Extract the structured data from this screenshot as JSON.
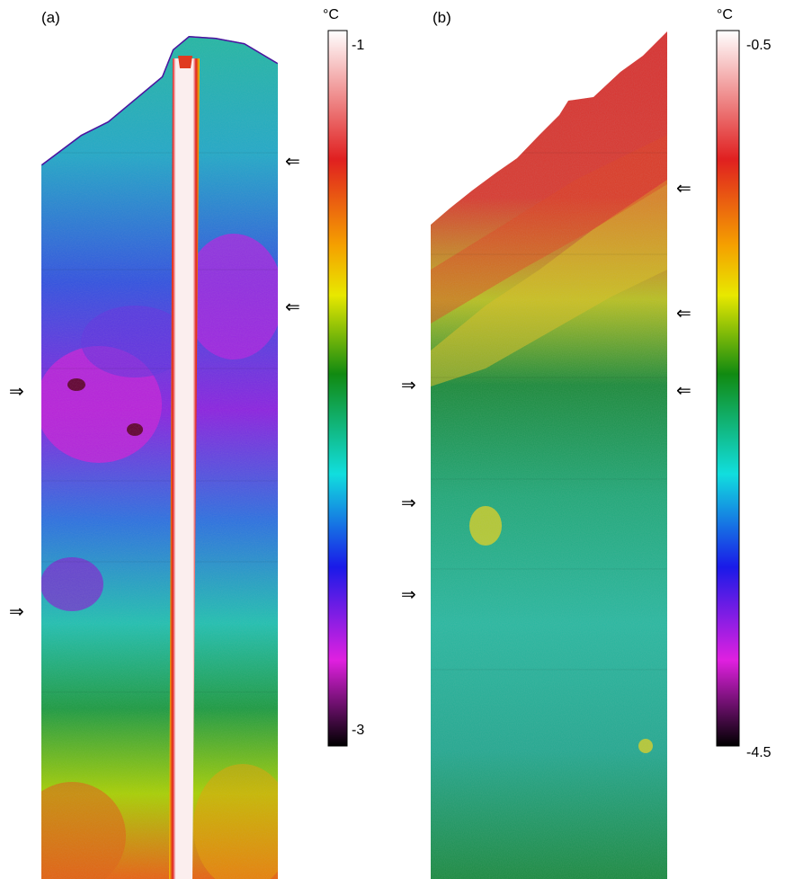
{
  "panels": {
    "a": {
      "label": "(a)",
      "unit": "°C",
      "scale_max": "-1",
      "scale_min": "-3",
      "arrows": [
        "⇐",
        "⇐",
        "⇒",
        "⇒"
      ]
    },
    "b": {
      "label": "(b)",
      "unit": "°C",
      "scale_max": "-0.5",
      "scale_min": "-4.5",
      "arrows": [
        "⇐",
        "⇐",
        "⇐",
        "⇒",
        "⇒",
        "⇒"
      ]
    }
  },
  "colors": {
    "colormap": [
      "#ffffff",
      "#e02020",
      "#f5a000",
      "#e8e800",
      "#118a11",
      "#11dede",
      "#1a1ae8",
      "#e020e0",
      "#000000"
    ]
  }
}
